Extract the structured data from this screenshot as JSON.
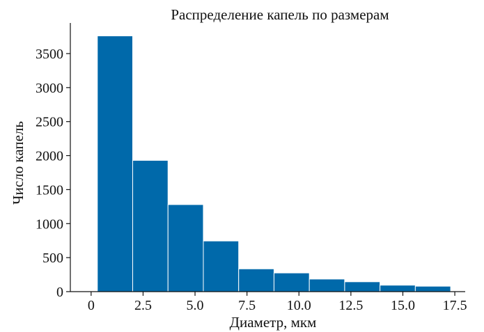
{
  "chart_data": {
    "type": "bar",
    "title": "Распределение капель по размерам",
    "xlabel": "Диаметр, мкм",
    "ylabel": "Число капель",
    "xlim": [
      -1.0,
      18.0
    ],
    "ylim": [
      0,
      3950
    ],
    "xticks": [
      "0",
      "2.5",
      "5.0",
      "7.5",
      "10.0",
      "12.5",
      "15.0",
      "17.5"
    ],
    "yticks": [
      "0",
      "500",
      "1000",
      "1500",
      "2000",
      "2500",
      "3000",
      "3500"
    ],
    "bins": [
      {
        "start": 0.3,
        "end": 2.0,
        "value": 3760
      },
      {
        "start": 2.0,
        "end": 3.7,
        "value": 1930
      },
      {
        "start": 3.7,
        "end": 5.4,
        "value": 1280
      },
      {
        "start": 5.4,
        "end": 7.1,
        "value": 745
      },
      {
        "start": 7.1,
        "end": 8.8,
        "value": 335
      },
      {
        "start": 8.8,
        "end": 10.5,
        "value": 275
      },
      {
        "start": 10.5,
        "end": 12.2,
        "value": 185
      },
      {
        "start": 12.2,
        "end": 13.9,
        "value": 145
      },
      {
        "start": 13.9,
        "end": 15.6,
        "value": 95
      },
      {
        "start": 15.6,
        "end": 17.3,
        "value": 80
      }
    ],
    "bar_color": "#0069aa",
    "grid": false
  }
}
